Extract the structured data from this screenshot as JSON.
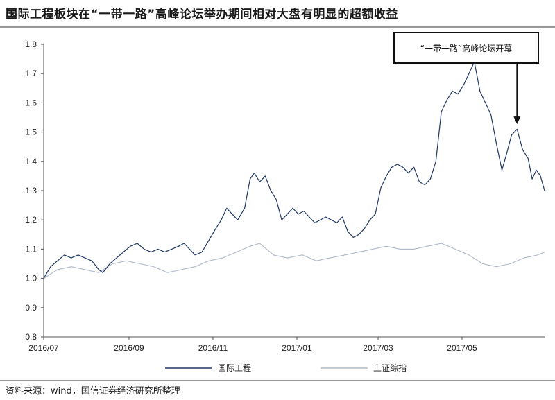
{
  "title": "国际工程板块在“一带一路”高峰论坛举办期间相对大盘有明显的超额收益",
  "source": "资料来源：wind，国信证券经济研究所整理",
  "chart_data": {
    "type": "line",
    "ylim": [
      0.8,
      1.8
    ],
    "yticks": [
      "0.8",
      "0.9",
      "1.0",
      "1.1",
      "1.2",
      "1.3",
      "1.4",
      "1.5",
      "1.6",
      "1.7",
      "1.8"
    ],
    "xlim": [
      "2016-07-01",
      "2017-06-30"
    ],
    "xticks": [
      {
        "label": "2016/07",
        "date": "2016-07-01"
      },
      {
        "label": "2016/09",
        "date": "2016-09-01"
      },
      {
        "label": "2016/11",
        "date": "2016-11-01"
      },
      {
        "label": "2017/01",
        "date": "2017-01-01"
      },
      {
        "label": "2017/03",
        "date": "2017-03-01"
      },
      {
        "label": "2017/05",
        "date": "2017-05-01"
      }
    ],
    "grid": false,
    "legend_position": "bottom-center",
    "series": [
      {
        "name": "国际工程",
        "color": "#1f3864",
        "points": [
          [
            "2016-07-01",
            1.0
          ],
          [
            "2016-07-06",
            1.04
          ],
          [
            "2016-07-11",
            1.06
          ],
          [
            "2016-07-16",
            1.08
          ],
          [
            "2016-07-21",
            1.07
          ],
          [
            "2016-07-26",
            1.08
          ],
          [
            "2016-07-31",
            1.07
          ],
          [
            "2016-08-05",
            1.06
          ],
          [
            "2016-08-10",
            1.03
          ],
          [
            "2016-08-13",
            1.02
          ],
          [
            "2016-08-18",
            1.05
          ],
          [
            "2016-08-23",
            1.07
          ],
          [
            "2016-08-28",
            1.09
          ],
          [
            "2016-09-02",
            1.11
          ],
          [
            "2016-09-07",
            1.12
          ],
          [
            "2016-09-12",
            1.1
          ],
          [
            "2016-09-17",
            1.09
          ],
          [
            "2016-09-22",
            1.1
          ],
          [
            "2016-09-27",
            1.09
          ],
          [
            "2016-10-02",
            1.1
          ],
          [
            "2016-10-07",
            1.11
          ],
          [
            "2016-10-11",
            1.12
          ],
          [
            "2016-10-15",
            1.1
          ],
          [
            "2016-10-19",
            1.08
          ],
          [
            "2016-10-24",
            1.09
          ],
          [
            "2016-10-29",
            1.13
          ],
          [
            "2016-11-03",
            1.17
          ],
          [
            "2016-11-07",
            1.2
          ],
          [
            "2016-11-11",
            1.24
          ],
          [
            "2016-11-15",
            1.22
          ],
          [
            "2016-11-19",
            1.2
          ],
          [
            "2016-11-24",
            1.24
          ],
          [
            "2016-11-28",
            1.34
          ],
          [
            "2016-12-01",
            1.36
          ],
          [
            "2016-12-05",
            1.33
          ],
          [
            "2016-12-09",
            1.35
          ],
          [
            "2016-12-13",
            1.3
          ],
          [
            "2016-12-17",
            1.27
          ],
          [
            "2016-12-21",
            1.2
          ],
          [
            "2016-12-25",
            1.22
          ],
          [
            "2016-12-29",
            1.24
          ],
          [
            "2017-01-02",
            1.22
          ],
          [
            "2017-01-06",
            1.23
          ],
          [
            "2017-01-10",
            1.21
          ],
          [
            "2017-01-14",
            1.19
          ],
          [
            "2017-01-18",
            1.2
          ],
          [
            "2017-01-22",
            1.21
          ],
          [
            "2017-01-26",
            1.2
          ],
          [
            "2017-01-30",
            1.19
          ],
          [
            "2017-02-03",
            1.21
          ],
          [
            "2017-02-07",
            1.16
          ],
          [
            "2017-02-11",
            1.14
          ],
          [
            "2017-02-15",
            1.15
          ],
          [
            "2017-02-19",
            1.17
          ],
          [
            "2017-02-23",
            1.2
          ],
          [
            "2017-02-27",
            1.22
          ],
          [
            "2017-03-03",
            1.31
          ],
          [
            "2017-03-07",
            1.35
          ],
          [
            "2017-03-11",
            1.38
          ],
          [
            "2017-03-15",
            1.39
          ],
          [
            "2017-03-19",
            1.38
          ],
          [
            "2017-03-23",
            1.36
          ],
          [
            "2017-03-27",
            1.38
          ],
          [
            "2017-03-31",
            1.33
          ],
          [
            "2017-04-04",
            1.32
          ],
          [
            "2017-04-08",
            1.34
          ],
          [
            "2017-04-12",
            1.4
          ],
          [
            "2017-04-16",
            1.57
          ],
          [
            "2017-04-20",
            1.61
          ],
          [
            "2017-04-24",
            1.64
          ],
          [
            "2017-04-28",
            1.63
          ],
          [
            "2017-05-02",
            1.66
          ],
          [
            "2017-05-06",
            1.7
          ],
          [
            "2017-05-10",
            1.74
          ],
          [
            "2017-05-14",
            1.64
          ],
          [
            "2017-05-18",
            1.6
          ],
          [
            "2017-05-22",
            1.56
          ],
          [
            "2017-05-26",
            1.46
          ],
          [
            "2017-05-30",
            1.37
          ],
          [
            "2017-06-02",
            1.42
          ],
          [
            "2017-06-06",
            1.49
          ],
          [
            "2017-06-10",
            1.51
          ],
          [
            "2017-06-14",
            1.44
          ],
          [
            "2017-06-18",
            1.41
          ],
          [
            "2017-06-21",
            1.34
          ],
          [
            "2017-06-24",
            1.37
          ],
          [
            "2017-06-27",
            1.35
          ],
          [
            "2017-06-30",
            1.3
          ]
        ]
      },
      {
        "name": "上证综指",
        "color": "#aeb9c8",
        "points": [
          [
            "2016-07-01",
            1.0
          ],
          [
            "2016-07-11",
            1.03
          ],
          [
            "2016-07-21",
            1.04
          ],
          [
            "2016-07-31",
            1.03
          ],
          [
            "2016-08-10",
            1.02
          ],
          [
            "2016-08-20",
            1.05
          ],
          [
            "2016-08-30",
            1.06
          ],
          [
            "2016-09-09",
            1.05
          ],
          [
            "2016-09-19",
            1.04
          ],
          [
            "2016-09-29",
            1.02
          ],
          [
            "2016-10-09",
            1.03
          ],
          [
            "2016-10-19",
            1.04
          ],
          [
            "2016-10-29",
            1.06
          ],
          [
            "2016-11-08",
            1.07
          ],
          [
            "2016-11-18",
            1.09
          ],
          [
            "2016-11-28",
            1.11
          ],
          [
            "2016-12-05",
            1.12
          ],
          [
            "2016-12-15",
            1.08
          ],
          [
            "2016-12-25",
            1.07
          ],
          [
            "2017-01-05",
            1.08
          ],
          [
            "2017-01-15",
            1.06
          ],
          [
            "2017-01-25",
            1.07
          ],
          [
            "2017-02-05",
            1.08
          ],
          [
            "2017-02-15",
            1.09
          ],
          [
            "2017-02-25",
            1.1
          ],
          [
            "2017-03-07",
            1.11
          ],
          [
            "2017-03-17",
            1.1
          ],
          [
            "2017-03-27",
            1.1
          ],
          [
            "2017-04-06",
            1.11
          ],
          [
            "2017-04-16",
            1.12
          ],
          [
            "2017-04-26",
            1.1
          ],
          [
            "2017-05-06",
            1.08
          ],
          [
            "2017-05-16",
            1.05
          ],
          [
            "2017-05-26",
            1.04
          ],
          [
            "2017-06-05",
            1.05
          ],
          [
            "2017-06-15",
            1.07
          ],
          [
            "2017-06-25",
            1.08
          ],
          [
            "2017-06-30",
            1.09
          ]
        ]
      }
    ],
    "annotation": {
      "text": "“一带一路”高峰论坛开幕",
      "arrow_to": [
        "2017-06-10",
        1.52
      ]
    }
  }
}
